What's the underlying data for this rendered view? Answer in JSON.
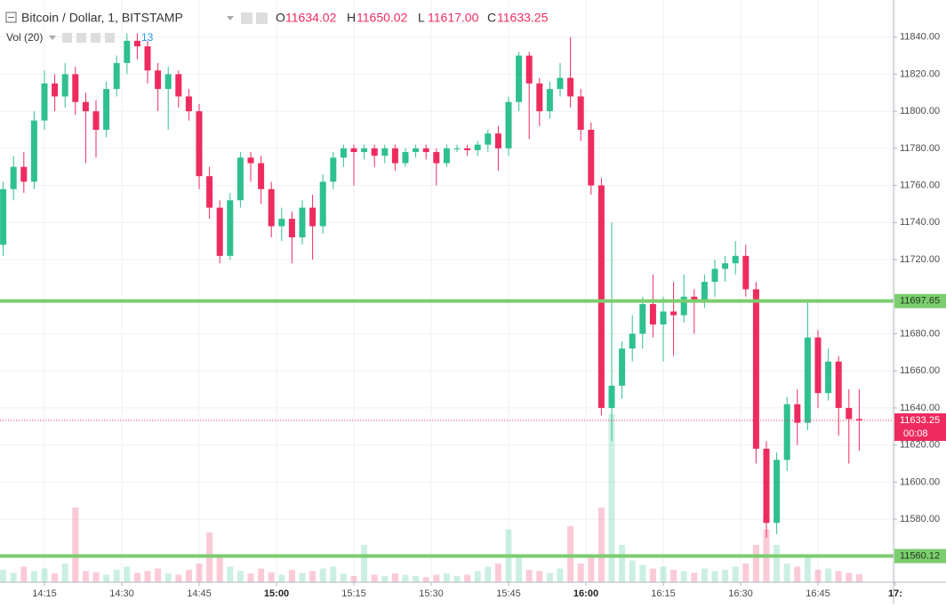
{
  "chart_data": {
    "type": "candlestick",
    "title": "Bitcoin / Dollar, 1, BITSTAMP",
    "header_values": [
      {
        "label": "O",
        "value": "11634.02"
      },
      {
        "label": "H",
        "value": "11650.02"
      },
      {
        "label": "L",
        "value": "11617.00"
      },
      {
        "label": "C",
        "value": "11633.25"
      }
    ],
    "volume_title": "Vol (20)",
    "countdown": "00:08",
    "up_color": "#2fc08f",
    "down_color": "#ee2b5f",
    "level_color": "#7ccd6e",
    "grid": true,
    "x": [
      "14:07",
      "14:09",
      "14:11",
      "14:13",
      "14:15",
      "14:17",
      "14:19",
      "14:21",
      "14:23",
      "14:25",
      "14:27",
      "14:29",
      "14:31",
      "14:33",
      "14:35",
      "14:37",
      "14:39",
      "14:41",
      "14:43",
      "14:45",
      "14:47",
      "14:49",
      "14:51",
      "14:53",
      "14:55",
      "14:57",
      "14:59",
      "15:01",
      "15:03",
      "15:05",
      "15:07",
      "15:09",
      "15:11",
      "15:13",
      "15:15",
      "15:17",
      "15:19",
      "15:21",
      "15:23",
      "15:25",
      "15:27",
      "15:29",
      "15:31",
      "15:33",
      "15:35",
      "15:37",
      "15:39",
      "15:41",
      "15:43",
      "15:45",
      "15:47",
      "15:49",
      "15:51",
      "15:53",
      "15:55",
      "15:57",
      "15:59",
      "16:01",
      "16:03",
      "16:05",
      "16:07",
      "16:09",
      "16:11",
      "16:13",
      "16:15",
      "16:17",
      "16:19",
      "16:21",
      "16:23",
      "16:25",
      "16:27",
      "16:29",
      "16:31",
      "16:33",
      "16:35",
      "16:37",
      "16:39",
      "16:41",
      "16:43",
      "16:45",
      "16:47",
      "16:49",
      "16:51",
      "16:53"
    ],
    "open": [
      11728,
      11758,
      11770,
      11762,
      11795,
      11815,
      11808,
      11820,
      11805,
      11800,
      11790,
      11812,
      11826,
      11838,
      11835,
      11822,
      11812,
      11820,
      11808,
      11800,
      11765,
      11748,
      11722,
      11752,
      11775,
      11772,
      11758,
      11738,
      11742,
      11732,
      11748,
      11738,
      11762,
      11775,
      11780,
      11778,
      11780,
      11776,
      11780,
      11772,
      11778,
      11780,
      11778,
      11772,
      11780,
      11780,
      11779,
      11782,
      11788,
      11780,
      11805,
      11830,
      11815,
      11800,
      11812,
      11818,
      11808,
      11790,
      11760,
      11640,
      11652,
      11672,
      11680,
      11696,
      11685,
      11692,
      11690,
      11700,
      11698,
      11708,
      11715,
      11718,
      11722,
      11704,
      11618,
      11578,
      11612,
      11642,
      11632,
      11678,
      11648,
      11665,
      11640,
      11634.02
    ],
    "high": [
      11762,
      11776,
      11778,
      11800,
      11822,
      11820,
      11826,
      11824,
      11810,
      11806,
      11816,
      11830,
      11842,
      11842,
      11838,
      11826,
      11824,
      11822,
      11812,
      11804,
      11770,
      11752,
      11756,
      11778,
      11778,
      11776,
      11762,
      11748,
      11746,
      11752,
      11755,
      11766,
      11778,
      11782,
      11782,
      11782,
      11782,
      11782,
      11782,
      11780,
      11782,
      11782,
      11780,
      11782,
      11782,
      11782,
      11784,
      11790,
      11792,
      11808,
      11832,
      11832,
      11818,
      11816,
      11826,
      11840,
      11812,
      11794,
      11764,
      11740,
      11676,
      11690,
      11700,
      11712,
      11700,
      11708,
      11712,
      11704,
      11712,
      11720,
      11722,
      11730,
      11728,
      11708,
      11622,
      11616,
      11646,
      11650,
      11698,
      11682,
      11672,
      11668,
      11650,
      11650.02
    ],
    "low": [
      11722,
      11752,
      11756,
      11758,
      11790,
      11800,
      11802,
      11798,
      11772,
      11775,
      11786,
      11808,
      11820,
      11828,
      11815,
      11800,
      11790,
      11802,
      11795,
      11758,
      11742,
      11718,
      11720,
      11748,
      11762,
      11750,
      11732,
      11730,
      11718,
      11728,
      11720,
      11734,
      11758,
      11770,
      11760,
      11774,
      11770,
      11772,
      11768,
      11770,
      11775,
      11774,
      11760,
      11770,
      11778,
      11776,
      11776,
      11778,
      11768,
      11776,
      11800,
      11785,
      11792,
      11796,
      11808,
      11802,
      11784,
      11755,
      11636,
      11622,
      11645,
      11665,
      11672,
      11678,
      11665,
      11668,
      11686,
      11680,
      11694,
      11700,
      11708,
      11712,
      11700,
      11610,
      11570,
      11572,
      11606,
      11620,
      11628,
      11640,
      11644,
      11625,
      11610,
      11617.0
    ],
    "close": [
      11758,
      11770,
      11762,
      11795,
      11815,
      11808,
      11820,
      11805,
      11800,
      11790,
      11812,
      11826,
      11838,
      11835,
      11822,
      11812,
      11820,
      11808,
      11800,
      11765,
      11748,
      11722,
      11752,
      11775,
      11772,
      11758,
      11738,
      11742,
      11732,
      11748,
      11738,
      11762,
      11775,
      11780,
      11778,
      11780,
      11776,
      11780,
      11772,
      11778,
      11780,
      11778,
      11772,
      11780,
      11780,
      11779,
      11782,
      11788,
      11780,
      11805,
      11830,
      11815,
      11800,
      11812,
      11818,
      11808,
      11790,
      11760,
      11640,
      11652,
      11672,
      11680,
      11696,
      11685,
      11692,
      11690,
      11700,
      11698,
      11708,
      11715,
      11718,
      11722,
      11704,
      11618,
      11578,
      11612,
      11642,
      11632,
      11678,
      11648,
      11665,
      11640,
      11634.02,
      11633.25
    ],
    "volume": [
      20,
      15,
      25,
      18,
      22,
      14,
      30,
      120,
      18,
      16,
      12,
      20,
      25,
      15,
      18,
      22,
      14,
      12,
      20,
      30,
      80,
      40,
      25,
      18,
      14,
      22,
      16,
      12,
      20,
      15,
      18,
      22,
      25,
      14,
      10,
      60,
      12,
      10,
      14,
      12,
      10,
      8,
      12,
      14,
      10,
      12,
      18,
      25,
      30,
      85,
      40,
      20,
      18,
      15,
      22,
      90,
      30,
      45,
      120,
      270,
      60,
      35,
      28,
      22,
      25,
      20,
      18,
      15,
      22,
      18,
      20,
      25,
      30,
      60,
      85,
      60,
      30,
      25,
      40,
      20,
      22,
      18,
      15,
      13
    ],
    "ylim": [
      11546,
      11860
    ],
    "yticks": [
      {
        "value": 11580,
        "label": "11580.00"
      },
      {
        "value": 11600,
        "label": "11600.00"
      },
      {
        "value": 11620,
        "label": "11620.00"
      },
      {
        "value": 11640,
        "label": "11640.00"
      },
      {
        "value": 11660,
        "label": "11660.00"
      },
      {
        "value": 11680,
        "label": "11680.00"
      },
      {
        "value": 11720,
        "label": "11720.00"
      },
      {
        "value": 11740,
        "label": "11740.00"
      },
      {
        "value": 11760,
        "label": "11760.00"
      },
      {
        "value": 11780,
        "label": "11780.00"
      },
      {
        "value": 11800,
        "label": "11800.00"
      },
      {
        "value": 11820,
        "label": "11820.00"
      },
      {
        "value": 11840,
        "label": "11840.00"
      }
    ],
    "xticks": [
      "14:15",
      "14:30",
      "14:45",
      "15:00",
      "15:15",
      "15:30",
      "15:45",
      "16:00",
      "16:15",
      "16:30",
      "16:45",
      "17:"
    ],
    "levels": [
      11697.65,
      11560.12
    ]
  }
}
